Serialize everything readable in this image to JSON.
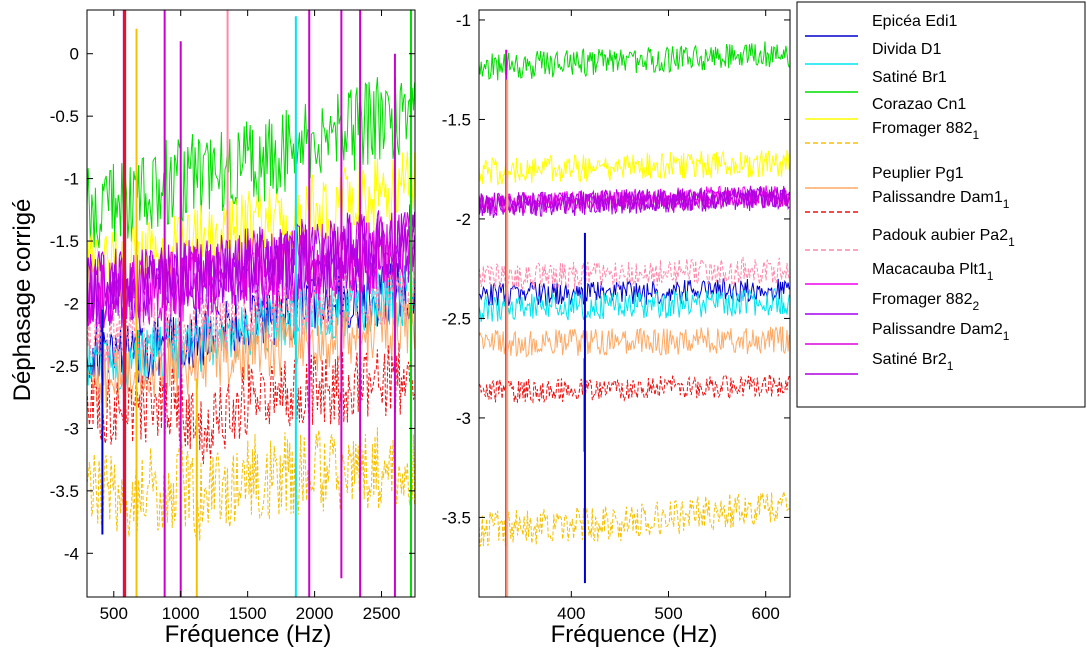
{
  "chart_data": [
    {
      "type": "line",
      "panel": "left",
      "xlabel": "Fréquence (Hz)",
      "ylabel": "Déphasage corrigé",
      "xlim": [
        300,
        2750
      ],
      "ylim": [
        -4.35,
        0.35
      ],
      "xticks": [
        500,
        1000,
        1500,
        2000,
        2500
      ],
      "yticks": [
        0,
        -0.5,
        -1,
        -1.5,
        -2,
        -2.5,
        -3,
        -3.5,
        -4
      ],
      "series": [
        {
          "name": "Epicéa Edi1",
          "color": "#0000cc",
          "dash": false,
          "points": [
            [
              300,
              -2.4
            ],
            [
              580,
              -2.42
            ],
            [
              1000,
              -2.3
            ],
            [
              1500,
              -2.15
            ],
            [
              2000,
              -2.0
            ],
            [
              2750,
              -1.9
            ]
          ],
          "noise": 0.25
        },
        {
          "name": "Divida D1",
          "color": "#00e5ee",
          "dash": false,
          "points": [
            [
              300,
              -2.45
            ],
            [
              580,
              -2.45
            ],
            [
              1000,
              -2.35
            ],
            [
              1500,
              -2.2
            ],
            [
              2000,
              -2.05
            ],
            [
              2750,
              -1.95
            ]
          ],
          "noise": 0.25
        },
        {
          "name": "Satiné Br1",
          "color": "#00dd00",
          "dash": false,
          "points": [
            [
              300,
              -1.25
            ],
            [
              580,
              -1.2
            ],
            [
              800,
              -1.05
            ],
            [
              1200,
              -0.95
            ],
            [
              1600,
              -0.85
            ],
            [
              2000,
              -0.7
            ],
            [
              2400,
              -0.55
            ],
            [
              2750,
              -0.45
            ]
          ],
          "noise": 0.35
        },
        {
          "name": "Corazao Cn1",
          "color": "#ffff00",
          "dash": false,
          "points": [
            [
              300,
              -1.72
            ],
            [
              580,
              -1.7
            ],
            [
              1000,
              -1.55
            ],
            [
              1500,
              -1.4
            ],
            [
              2000,
              -1.25
            ],
            [
              2750,
              -1.05
            ]
          ],
          "noise": 0.3
        },
        {
          "name": "Fromager 882₁",
          "color": "#f5c000",
          "dash": true,
          "points": [
            [
              300,
              -3.55
            ],
            [
              580,
              -3.55
            ],
            [
              800,
              -3.5
            ],
            [
              1000,
              -3.45
            ],
            [
              1150,
              -3.6
            ],
            [
              1500,
              -3.4
            ],
            [
              2000,
              -3.35
            ],
            [
              2750,
              -3.3
            ]
          ],
          "noise": 0.35
        },
        {
          "name": "Peuplier Pg1",
          "color": "#ffaa66",
          "dash": false,
          "points": [
            [
              300,
              -2.62
            ],
            [
              580,
              -2.6
            ],
            [
              1000,
              -2.5
            ],
            [
              1500,
              -2.4
            ],
            [
              2000,
              -2.3
            ],
            [
              2750,
              -2.2
            ]
          ],
          "noise": 0.25
        },
        {
          "name": "Palissandre Dam1₁",
          "color": "#ee1111",
          "dash": true,
          "points": [
            [
              300,
              -2.85
            ],
            [
              580,
              -2.85
            ],
            [
              800,
              -2.8
            ],
            [
              1000,
              -2.8
            ],
            [
              1150,
              -3.05
            ],
            [
              1500,
              -2.75
            ],
            [
              2000,
              -2.7
            ],
            [
              2750,
              -2.6
            ]
          ],
          "noise": 0.3
        },
        {
          "name": "Padouk aubier Pa2₁",
          "color": "#ff88aa",
          "dash": true,
          "points": [
            [
              300,
              -2.28
            ],
            [
              580,
              -2.28
            ],
            [
              1000,
              -2.2
            ],
            [
              1500,
              -2.1
            ],
            [
              2000,
              -2.0
            ],
            [
              2750,
              -1.9
            ]
          ],
          "noise": 0.25
        },
        {
          "name": "Macacauba Plt1₁",
          "color": "#ee00ee",
          "dash": false,
          "points": [
            [
              300,
              -1.95
            ],
            [
              580,
              -1.9
            ],
            [
              1000,
              -1.85
            ],
            [
              1500,
              -1.75
            ],
            [
              2000,
              -1.7
            ],
            [
              2750,
              -1.6
            ]
          ],
          "noise": 0.3
        },
        {
          "name": "Fromager 882₂",
          "color": "#aa00ee",
          "dash": false,
          "points": [
            [
              300,
              -1.92
            ],
            [
              580,
              -1.9
            ],
            [
              1000,
              -1.85
            ],
            [
              1500,
              -1.75
            ],
            [
              2000,
              -1.65
            ],
            [
              2750,
              -1.55
            ]
          ],
          "noise": 0.32
        },
        {
          "name": "Palissandre Dam2₁",
          "color": "#dd00dd",
          "dash": false,
          "points": [
            [
              300,
              -1.9
            ],
            [
              580,
              -1.88
            ],
            [
              1000,
              -1.8
            ],
            [
              1500,
              -1.7
            ],
            [
              2000,
              -1.65
            ],
            [
              2750,
              -1.55
            ]
          ],
          "noise": 0.3
        },
        {
          "name": "Satiné Br2₁",
          "color": "#b000dd",
          "dash": false,
          "points": [
            [
              300,
              -1.88
            ],
            [
              580,
              -1.85
            ],
            [
              1000,
              -1.78
            ],
            [
              1500,
              -1.68
            ],
            [
              2000,
              -1.6
            ],
            [
              2750,
              -1.5
            ]
          ],
          "noise": 0.3
        }
      ],
      "spikes": [
        {
          "x": 415,
          "ymin": -3.85,
          "ymax": -2.05,
          "color": "#0000cc"
        },
        {
          "x": 575,
          "ymin": -4.35,
          "ymax": 0.35,
          "color": "#cc00cc"
        },
        {
          "x": 585,
          "ymin": -4.35,
          "ymax": 0.35,
          "color": "#ee1111"
        },
        {
          "x": 670,
          "ymin": -4.35,
          "ymax": 0.2,
          "color": "#f5c000"
        },
        {
          "x": 880,
          "ymin": -4.35,
          "ymax": 0.35,
          "color": "#cc00cc"
        },
        {
          "x": 1000,
          "ymin": -4.35,
          "ymax": 0.1,
          "color": "#cc00cc"
        },
        {
          "x": 1120,
          "ymin": -4.35,
          "ymax": -2.6,
          "color": "#f5c000"
        },
        {
          "x": 1350,
          "ymin": -1.5,
          "ymax": 0.35,
          "color": "#ff88aa"
        },
        {
          "x": 1860,
          "ymin": -4.35,
          "ymax": 0.3,
          "color": "#00e5ee"
        },
        {
          "x": 1960,
          "ymin": -4.35,
          "ymax": 0.35,
          "color": "#cc00cc"
        },
        {
          "x": 2200,
          "ymin": -4.2,
          "ymax": 0.35,
          "color": "#cc00cc"
        },
        {
          "x": 2340,
          "ymin": -4.35,
          "ymax": 0.35,
          "color": "#cc00cc"
        },
        {
          "x": 2600,
          "ymin": -4.35,
          "ymax": 0.0,
          "color": "#cc00cc"
        },
        {
          "x": 2720,
          "ymin": -4.35,
          "ymax": 0.35,
          "color": "#00dd00"
        }
      ]
    },
    {
      "type": "line",
      "panel": "right",
      "xlabel": "Fréquence (Hz)",
      "ylabel": "",
      "xlim": [
        305,
        625
      ],
      "ylim": [
        -3.9,
        -0.95
      ],
      "xticks": [
        400,
        500,
        600
      ],
      "yticks": [
        -1,
        -1.5,
        -2,
        -2.5,
        -3,
        -3.5
      ],
      "series": [
        {
          "name": "Epicéa Edi1",
          "color": "#0000cc",
          "dash": false,
          "points": [
            [
              305,
              -2.38
            ],
            [
              590,
              -2.36
            ]
          ],
          "noise": 0.06
        },
        {
          "name": "Divida D1",
          "color": "#00e5ee",
          "dash": false,
          "points": [
            [
              305,
              -2.45
            ],
            [
              590,
              -2.42
            ]
          ],
          "noise": 0.07
        },
        {
          "name": "Satiné Br1",
          "color": "#00dd00",
          "dash": false,
          "points": [
            [
              305,
              -1.24
            ],
            [
              590,
              -1.17
            ]
          ],
          "noise": 0.07
        },
        {
          "name": "Corazao Cn1",
          "color": "#ffff00",
          "dash": false,
          "points": [
            [
              305,
              -1.76
            ],
            [
              590,
              -1.72
            ]
          ],
          "noise": 0.07
        },
        {
          "name": "Fromager 882₁",
          "color": "#f5c000",
          "dash": true,
          "points": [
            [
              305,
              -3.56
            ],
            [
              450,
              -3.53
            ],
            [
              590,
              -3.45
            ]
          ],
          "noise": 0.09
        },
        {
          "name": "Peuplier Pg1",
          "color": "#ffaa66",
          "dash": false,
          "points": [
            [
              305,
              -2.63
            ],
            [
              590,
              -2.61
            ]
          ],
          "noise": 0.07
        },
        {
          "name": "Palissandre Dam1₁",
          "color": "#ee1111",
          "dash": true,
          "points": [
            [
              305,
              -2.87
            ],
            [
              590,
              -2.84
            ]
          ],
          "noise": 0.06
        },
        {
          "name": "Padouk aubier Pa2₁",
          "color": "#ff88aa",
          "dash": true,
          "points": [
            [
              305,
              -2.3
            ],
            [
              590,
              -2.26
            ]
          ],
          "noise": 0.07
        },
        {
          "name": "Macacauba Plt1₁",
          "color": "#ee00ee",
          "dash": false,
          "points": [
            [
              305,
              -1.92
            ],
            [
              590,
              -1.88
            ]
          ],
          "noise": 0.05
        },
        {
          "name": "Fromager 882₂",
          "color": "#aa00ee",
          "dash": false,
          "points": [
            [
              305,
              -1.94
            ],
            [
              590,
              -1.9
            ]
          ],
          "noise": 0.06
        },
        {
          "name": "Palissandre Dam2₁",
          "color": "#dd00dd",
          "dash": false,
          "points": [
            [
              305,
              -1.93
            ],
            [
              590,
              -1.9
            ]
          ],
          "noise": 0.05
        },
        {
          "name": "Satiné Br2₁",
          "color": "#b000dd",
          "dash": false,
          "points": [
            [
              305,
              -1.93
            ],
            [
              590,
              -1.89
            ]
          ],
          "noise": 0.06
        }
      ],
      "spikes": [
        {
          "x": 333,
          "ymin": -3.9,
          "ymax": -1.15,
          "color": "#cc00cc"
        },
        {
          "x": 334,
          "ymin": -3.9,
          "ymax": -1.3,
          "color": "#ffaa66"
        },
        {
          "x": 413,
          "ymin": -3.17,
          "ymax": -2.7,
          "color": "#00e5ee"
        },
        {
          "x": 414,
          "ymin": -3.83,
          "ymax": -2.07,
          "color": "#0000cc"
        }
      ]
    }
  ],
  "legend": {
    "placement": "right",
    "entries": [
      {
        "text": "Epicéa Edi1",
        "sub": "",
        "color": "#0000cc",
        "dash": false
      },
      {
        "text": "Divida D1",
        "sub": "",
        "color": "#00e5ee",
        "dash": false
      },
      {
        "text": "Satiné Br1",
        "sub": "",
        "color": "#00dd00",
        "dash": false
      },
      {
        "text": "Corazao Cn1",
        "sub": "",
        "color": "#ffff00",
        "dash": false
      },
      {
        "text": "Fromager 882",
        "sub": "1",
        "color": "#f5c000",
        "dash": true
      },
      {
        "text": "Peuplier Pg1",
        "sub": "",
        "color": "#ffaa66",
        "dash": false
      },
      {
        "text": "Palissandre Dam1",
        "sub": "1",
        "color": "#ee1111",
        "dash": true
      },
      {
        "text": "Padouk aubier Pa2",
        "sub": "1",
        "color": "#ff88aa",
        "dash": true
      },
      {
        "text": "Macacauba Plt1",
        "sub": "1",
        "color": "#ee00ee",
        "dash": false
      },
      {
        "text": "Fromager 882",
        "sub": "2",
        "color": "#aa00ee",
        "dash": false
      },
      {
        "text": "Palissandre Dam2",
        "sub": "1",
        "color": "#dd00dd",
        "dash": false
      },
      {
        "text": "Satiné Br2",
        "sub": "1",
        "color": "#b000dd",
        "dash": false
      }
    ]
  }
}
